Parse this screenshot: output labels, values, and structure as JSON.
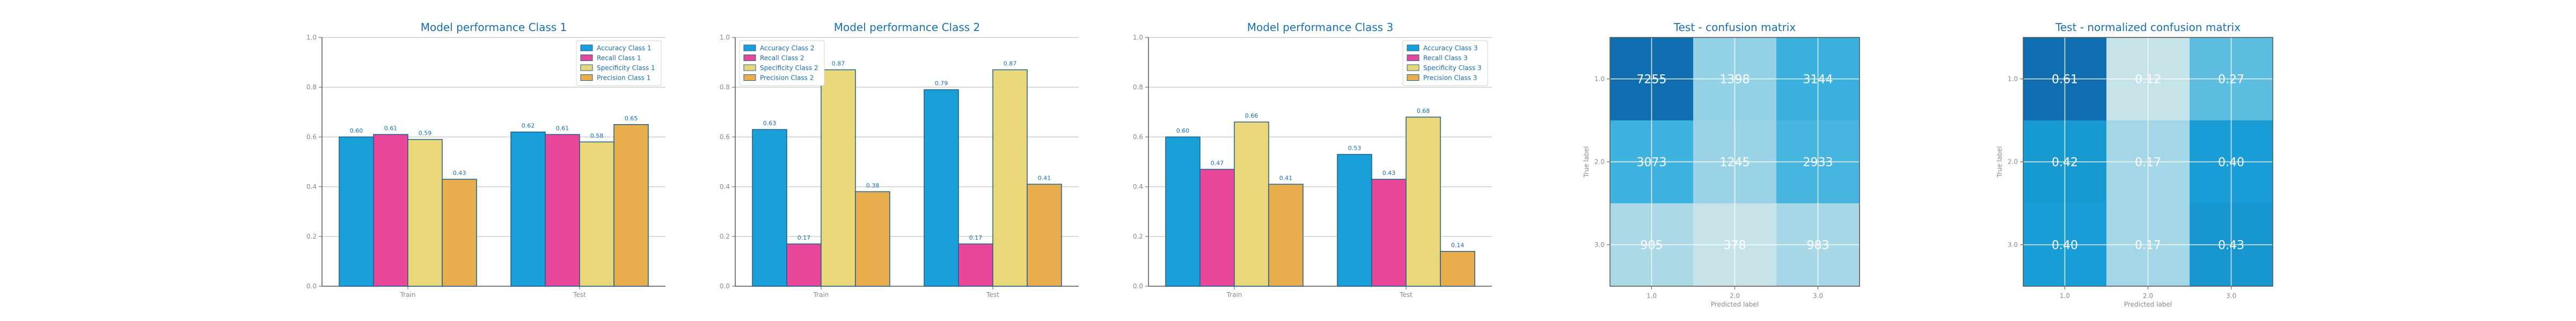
{
  "chart_data": [
    {
      "type": "bar",
      "title": "Model performance Class 1",
      "categories": [
        "Train",
        "Test"
      ],
      "ylim": [
        0,
        1.0
      ],
      "yticks": [
        "0.0",
        "0.2",
        "0.4",
        "0.6",
        "0.8",
        "1.0"
      ],
      "grid": true,
      "legend": "top-right",
      "series": [
        {
          "name": "Accuracy Class 1",
          "values": [
            0.6,
            0.62
          ],
          "labels": [
            "0.60",
            "0.62"
          ],
          "color": "#1aa0d8"
        },
        {
          "name": "Recall Class 1",
          "values": [
            0.61,
            0.61
          ],
          "labels": [
            "0.61",
            "0.61"
          ],
          "color": "#e8479a"
        },
        {
          "name": "Specificity Class 1",
          "values": [
            0.59,
            0.58
          ],
          "labels": [
            "0.59",
            "0.58"
          ],
          "color": "#ead77a"
        },
        {
          "name": "Precision Class 1",
          "values": [
            0.43,
            0.65
          ],
          "labels": [
            "0.43",
            "0.65"
          ],
          "color": "#e8ae4e"
        }
      ]
    },
    {
      "type": "bar",
      "title": "Model performance Class 2",
      "categories": [
        "Train",
        "Test"
      ],
      "ylim": [
        0,
        1.0
      ],
      "yticks": [
        "0.0",
        "0.2",
        "0.4",
        "0.6",
        "0.8",
        "1.0"
      ],
      "grid": true,
      "legend": "top-left",
      "series": [
        {
          "name": "Accuracy Class 2",
          "values": [
            0.63,
            0.79
          ],
          "labels": [
            "0.63",
            "0.79"
          ],
          "color": "#1aa0d8"
        },
        {
          "name": "Recall Class 2",
          "values": [
            0.17,
            0.17
          ],
          "labels": [
            "0.17",
            "0.17"
          ],
          "color": "#e8479a"
        },
        {
          "name": "Specificity Class 2",
          "values": [
            0.87,
            0.87
          ],
          "labels": [
            "0.87",
            "0.87"
          ],
          "color": "#ead77a"
        },
        {
          "name": "Precision Class 2",
          "values": [
            0.38,
            0.41
          ],
          "labels": [
            "0.38",
            "0.41"
          ],
          "color": "#e8ae4e"
        }
      ]
    },
    {
      "type": "bar",
      "title": "Model performance Class 3",
      "categories": [
        "Train",
        "Test"
      ],
      "ylim": [
        0,
        1.0
      ],
      "yticks": [
        "0.0",
        "0.2",
        "0.4",
        "0.6",
        "0.8",
        "1.0"
      ],
      "grid": true,
      "legend": "top-right",
      "series": [
        {
          "name": "Accuracy Class 3",
          "values": [
            0.6,
            0.53
          ],
          "labels": [
            "0.60",
            "0.53"
          ],
          "color": "#1aa0d8"
        },
        {
          "name": "Recall Class 3",
          "values": [
            0.47,
            0.43
          ],
          "labels": [
            "0.47",
            "0.43"
          ],
          "color": "#e8479a"
        },
        {
          "name": "Specificity Class 3",
          "values": [
            0.66,
            0.68
          ],
          "labels": [
            "0.66",
            "0.68"
          ],
          "color": "#ead77a"
        },
        {
          "name": "Precision Class 3",
          "values": [
            0.41,
            0.14
          ],
          "labels": [
            "0.41",
            "0.14"
          ],
          "color": "#e8ae4e"
        }
      ]
    },
    {
      "type": "heatmap",
      "title": "Test - confusion matrix",
      "xlabel": "Predicted label",
      "ylabel": "True label",
      "xticks": [
        "1.0",
        "2.0",
        "3.0"
      ],
      "yticks": [
        "1.0",
        "2.0",
        "3.0"
      ],
      "cells": [
        [
          "7255",
          "1398",
          "3144"
        ],
        [
          "3073",
          "1245",
          "2933"
        ],
        [
          "905",
          "378",
          "983"
        ]
      ],
      "values": [
        [
          7255,
          1398,
          3144
        ],
        [
          3073,
          1245,
          2933
        ],
        [
          905,
          378,
          983
        ]
      ],
      "grid": true
    },
    {
      "type": "heatmap",
      "title": "Test - normalized confusion matrix",
      "xlabel": "Predicted label",
      "ylabel": "True label",
      "xticks": [
        "1.0",
        "2.0",
        "3.0"
      ],
      "yticks": [
        "1.0",
        "2.0",
        "3.0"
      ],
      "cells": [
        [
          "0.61",
          "0.12",
          "0.27"
        ],
        [
          "0.42",
          "0.17",
          "0.40"
        ],
        [
          "0.40",
          "0.17",
          "0.43"
        ]
      ],
      "values": [
        [
          0.61,
          0.12,
          0.27
        ],
        [
          0.42,
          0.17,
          0.4
        ],
        [
          0.4,
          0.17,
          0.43
        ]
      ],
      "grid": true
    }
  ],
  "colors": {
    "title": "#1a6fb0",
    "tick": "#8a8a8a",
    "grid": "#cfcfcf",
    "axis": "#555555",
    "bar_edge": "#1f5f8a",
    "cell_white_text": "#ffffff"
  }
}
